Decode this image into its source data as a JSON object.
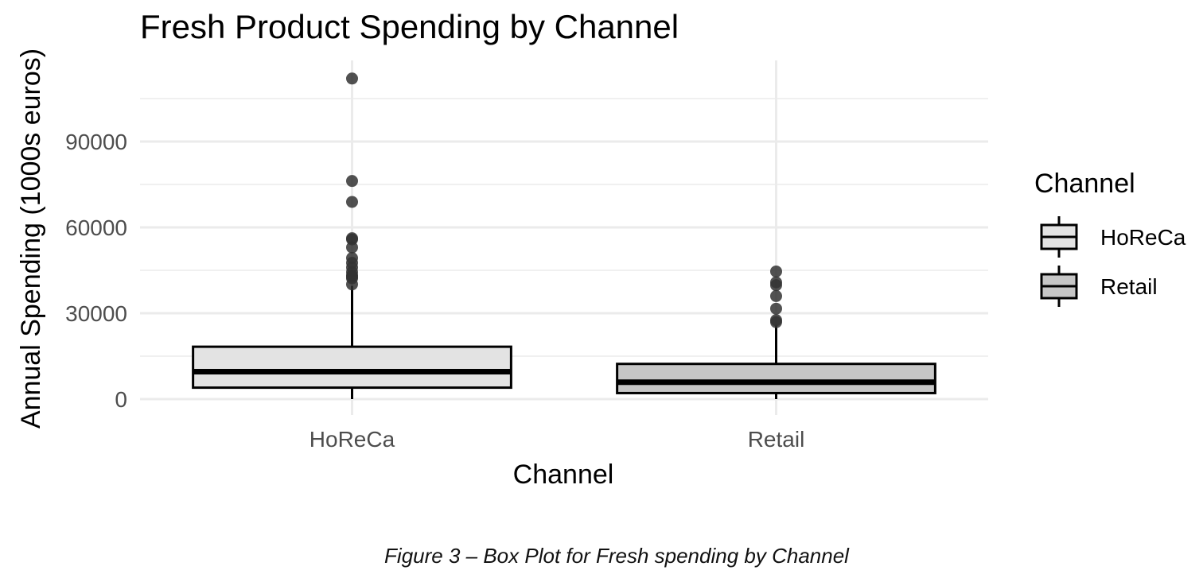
{
  "chart_data": {
    "type": "box",
    "title": "Fresh Product Spending by Channel",
    "xlabel": "Channel",
    "ylabel": "Annual Spending (1000s euros)",
    "ylim": [
      -4000,
      117500
    ],
    "yticks": [
      0,
      30000,
      60000,
      90000
    ],
    "categories": [
      "HoReCa",
      "Retail"
    ],
    "grid": true,
    "legend": {
      "title": "Channel",
      "position": "right",
      "entries": [
        {
          "label": "HoReCa",
          "fill": "#e3e3e3"
        },
        {
          "label": "Retail",
          "fill": "#c6c6c6"
        }
      ]
    },
    "series": [
      {
        "category": "HoReCa",
        "fill": "#e3e3e3",
        "min": 0,
        "q1": 4000,
        "median": 9600,
        "q3": 18300,
        "max": 39600,
        "outliers": [
          112000,
          76200,
          68900,
          56200,
          55800,
          53000,
          49300,
          47600,
          46000,
          44400,
          43300,
          42700,
          42200,
          40100
        ]
      },
      {
        "category": "Retail",
        "fill": "#c6c6c6",
        "min": 0,
        "q1": 2100,
        "median": 5900,
        "q3": 12300,
        "max": 26000,
        "outliers": [
          44600,
          40800,
          39800,
          36000,
          31600,
          27600,
          26900
        ]
      }
    ]
  },
  "caption": "Figure 3 – Box Plot for Fresh spending by Channel",
  "colors": {
    "grid": "#ebebeb",
    "axis_text": "#4d4d4d",
    "outline": "#000000",
    "outlier": "#333333"
  }
}
